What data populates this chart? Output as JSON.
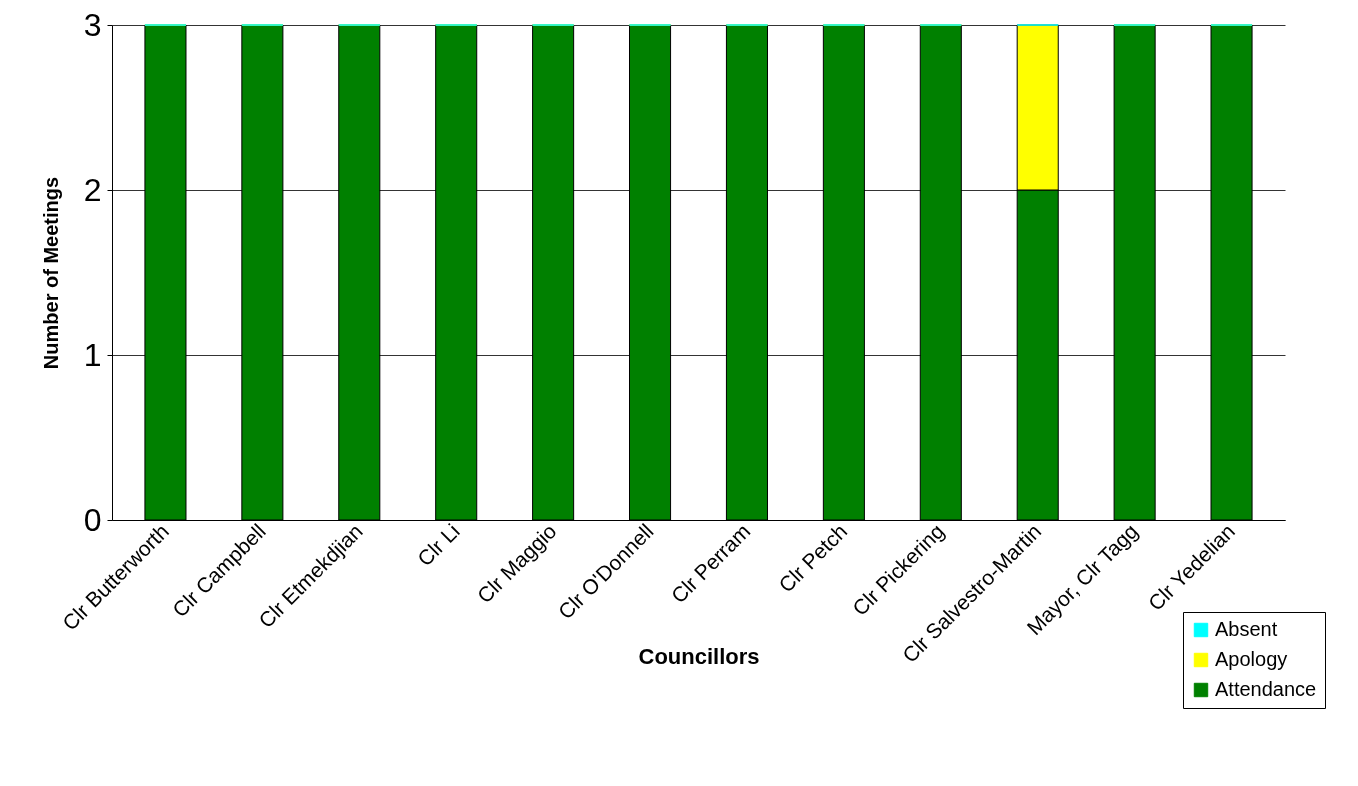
{
  "chart_data": {
    "type": "bar",
    "stacked": true,
    "xlabel": "Councillors",
    "ylabel": "Number of Meetings",
    "categories": [
      "Clr Butterworth",
      "Clr Campbell",
      "Clr Etmekdjian",
      "Clr Li",
      "Clr Maggio",
      "Clr O'Donnell",
      "Clr Perram",
      "Clr Petch",
      "Clr Pickering",
      "Clr Salvestro-Martin",
      "Mayor, Clr Tagg",
      "Clr Yedelian"
    ],
    "series": [
      {
        "name": "Attendance",
        "color": "#008000",
        "values": [
          3,
          3,
          3,
          3,
          3,
          3,
          3,
          3,
          3,
          2,
          3,
          3
        ]
      },
      {
        "name": "Apology",
        "color": "#ffff00",
        "values": [
          0,
          0,
          0,
          0,
          0,
          0,
          0,
          0,
          0,
          1,
          0,
          0
        ]
      },
      {
        "name": "Absent",
        "color": "#00ffff",
        "values": [
          0,
          0,
          0,
          0,
          0,
          0,
          0,
          0,
          0,
          0,
          0,
          0
        ]
      }
    ],
    "ylim": [
      0,
      3
    ],
    "yticks": [
      0,
      1,
      2,
      3
    ],
    "grid": "y",
    "legend": "bottom right"
  }
}
